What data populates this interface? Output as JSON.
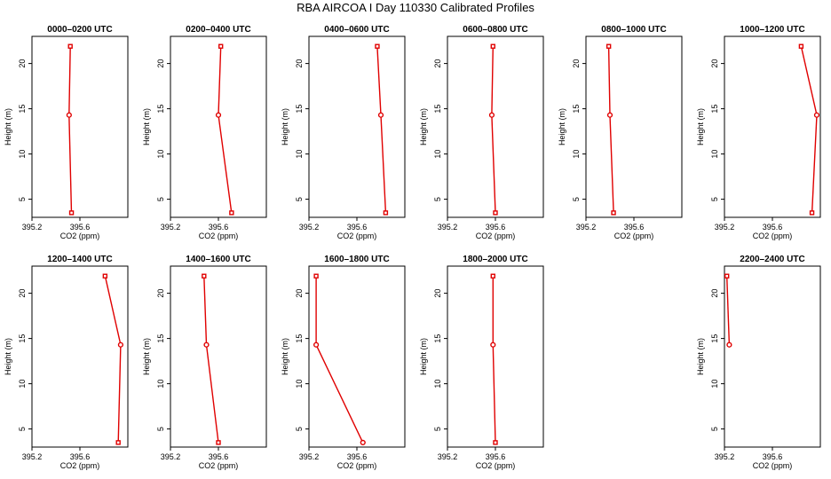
{
  "title": "RBA AIRCOA I  Day 110330  Calibrated Profiles",
  "chart_data": [
    {
      "type": "line",
      "title": "0000–0200 UTC",
      "xlabel": "CO2 (ppm)",
      "ylabel": "Height (m)",
      "xlim": [
        395.2,
        396.0
      ],
      "ylim": [
        3,
        23
      ],
      "xticks": [
        "395.2",
        "395.6"
      ],
      "yticks": [
        "5",
        "10",
        "15",
        "20"
      ],
      "points": [
        {
          "x": 395.53,
          "y": 3.5,
          "marker": "square"
        },
        {
          "x": 395.51,
          "y": 14.3,
          "marker": "circle"
        },
        {
          "x": 395.52,
          "y": 21.9,
          "marker": "square"
        }
      ]
    },
    {
      "type": "line",
      "title": "0200–0400 UTC",
      "xlabel": "CO2 (ppm)",
      "ylabel": "Height (m)",
      "xlim": [
        395.2,
        396.0
      ],
      "ylim": [
        3,
        23
      ],
      "xticks": [
        "395.2",
        "395.6"
      ],
      "yticks": [
        "5",
        "10",
        "15",
        "20"
      ],
      "points": [
        {
          "x": 395.71,
          "y": 3.5,
          "marker": "square"
        },
        {
          "x": 395.6,
          "y": 14.3,
          "marker": "circle"
        },
        {
          "x": 395.62,
          "y": 21.9,
          "marker": "square"
        }
      ]
    },
    {
      "type": "line",
      "title": "0400–0600 UTC",
      "xlabel": "CO2 (ppm)",
      "ylabel": "Height (m)",
      "xlim": [
        395.2,
        396.0
      ],
      "ylim": [
        3,
        23
      ],
      "xticks": [
        "395.2",
        "395.6"
      ],
      "yticks": [
        "5",
        "10",
        "15",
        "20"
      ],
      "points": [
        {
          "x": 395.84,
          "y": 3.5,
          "marker": "square"
        },
        {
          "x": 395.8,
          "y": 14.3,
          "marker": "circle"
        },
        {
          "x": 395.77,
          "y": 21.9,
          "marker": "square"
        }
      ]
    },
    {
      "type": "line",
      "title": "0600–0800 UTC",
      "xlabel": "CO2 (ppm)",
      "ylabel": "Height (m)",
      "xlim": [
        395.2,
        396.0
      ],
      "ylim": [
        3,
        23
      ],
      "xticks": [
        "395.2",
        "395.6"
      ],
      "yticks": [
        "5",
        "10",
        "15",
        "20"
      ],
      "points": [
        {
          "x": 395.6,
          "y": 3.5,
          "marker": "square"
        },
        {
          "x": 395.57,
          "y": 14.3,
          "marker": "circle"
        },
        {
          "x": 395.58,
          "y": 21.9,
          "marker": "square"
        }
      ]
    },
    {
      "type": "line",
      "title": "0800–1000 UTC",
      "xlabel": "CO2 (ppm)",
      "ylabel": "Height (m)",
      "xlim": [
        395.2,
        396.0
      ],
      "ylim": [
        3,
        23
      ],
      "xticks": [
        "395.2",
        "395.6"
      ],
      "yticks": [
        "5",
        "10",
        "15",
        "20"
      ],
      "points": [
        {
          "x": 395.43,
          "y": 3.5,
          "marker": "square"
        },
        {
          "x": 395.4,
          "y": 14.3,
          "marker": "circle"
        },
        {
          "x": 395.39,
          "y": 21.9,
          "marker": "square"
        }
      ]
    },
    {
      "type": "line",
      "title": "1000–1200 UTC",
      "xlabel": "CO2 (ppm)",
      "ylabel": "Height (m)",
      "xlim": [
        395.2,
        396.0
      ],
      "ylim": [
        3,
        23
      ],
      "xticks": [
        "395.2",
        "395.6"
      ],
      "yticks": [
        "5",
        "10",
        "15",
        "20"
      ],
      "points": [
        {
          "x": 395.93,
          "y": 3.5,
          "marker": "square"
        },
        {
          "x": 395.97,
          "y": 14.3,
          "marker": "circle"
        },
        {
          "x": 395.84,
          "y": 21.9,
          "marker": "square"
        }
      ]
    },
    {
      "type": "line",
      "title": "1200–1400 UTC",
      "xlabel": "CO2 (ppm)",
      "ylabel": "Height (m)",
      "xlim": [
        395.2,
        396.0
      ],
      "ylim": [
        3,
        23
      ],
      "xticks": [
        "395.2",
        "395.6"
      ],
      "yticks": [
        "5",
        "10",
        "15",
        "20"
      ],
      "points": [
        {
          "x": 395.92,
          "y": 3.5,
          "marker": "square"
        },
        {
          "x": 395.94,
          "y": 14.3,
          "marker": "circle"
        },
        {
          "x": 395.81,
          "y": 21.9,
          "marker": "square"
        }
      ]
    },
    {
      "type": "line",
      "title": "1400–1600 UTC",
      "xlabel": "CO2 (ppm)",
      "ylabel": "Height (m)",
      "xlim": [
        395.2,
        396.0
      ],
      "ylim": [
        3,
        23
      ],
      "xticks": [
        "395.2",
        "395.6"
      ],
      "yticks": [
        "5",
        "10",
        "15",
        "20"
      ],
      "points": [
        {
          "x": 395.6,
          "y": 3.5,
          "marker": "square"
        },
        {
          "x": 395.5,
          "y": 14.3,
          "marker": "circle"
        },
        {
          "x": 395.48,
          "y": 21.9,
          "marker": "square"
        }
      ]
    },
    {
      "type": "line",
      "title": "1600–1800 UTC",
      "xlabel": "CO2 (ppm)",
      "ylabel": "Height (m)",
      "xlim": [
        395.2,
        396.0
      ],
      "ylim": [
        3,
        23
      ],
      "xticks": [
        "395.2",
        "395.6"
      ],
      "yticks": [
        "5",
        "10",
        "15",
        "20"
      ],
      "points": [
        {
          "x": 395.65,
          "y": 3.5,
          "marker": "circle"
        },
        {
          "x": 395.26,
          "y": 14.3,
          "marker": "circle"
        },
        {
          "x": 395.26,
          "y": 21.9,
          "marker": "square"
        }
      ]
    },
    {
      "type": "line",
      "title": "1800–2000 UTC",
      "xlabel": "CO2 (ppm)",
      "ylabel": "Height (m)",
      "xlim": [
        395.2,
        396.0
      ],
      "ylim": [
        3,
        23
      ],
      "xticks": [
        "395.2",
        "395.6"
      ],
      "yticks": [
        "5",
        "10",
        "15",
        "20"
      ],
      "points": [
        {
          "x": 395.6,
          "y": 3.5,
          "marker": "square"
        },
        {
          "x": 395.58,
          "y": 14.3,
          "marker": "circle"
        },
        {
          "x": 395.58,
          "y": 21.9,
          "marker": "square"
        }
      ]
    },
    {
      "type": "line",
      "title": "2200–2400 UTC",
      "xlabel": "CO2 (ppm)",
      "ylabel": "Height (m)",
      "xlim": [
        395.2,
        396.0
      ],
      "ylim": [
        3,
        23
      ],
      "xticks": [
        "395.2",
        "395.6"
      ],
      "yticks": [
        "5",
        "10",
        "15",
        "20"
      ],
      "points": [
        {
          "x": 395.24,
          "y": 14.3,
          "marker": "circle"
        },
        {
          "x": 395.22,
          "y": 21.9,
          "marker": "square"
        }
      ]
    }
  ]
}
